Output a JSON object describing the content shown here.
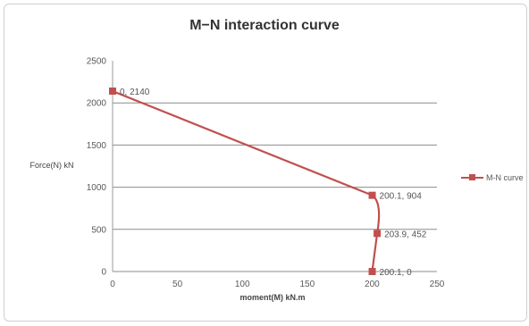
{
  "chart_data": {
    "type": "line",
    "title": "M−N interaction curve",
    "xlabel": "moment(M) kN.m",
    "ylabel": "Force(N) kN",
    "xlim": [
      0,
      250
    ],
    "ylim": [
      0,
      2500
    ],
    "x_ticks": [
      "0",
      "50",
      "100",
      "150",
      "200",
      "250"
    ],
    "y_ticks": [
      "0",
      "500",
      "1000",
      "1500",
      "2000",
      "2500"
    ],
    "grid": "horizontal",
    "legend_position": "right",
    "series": [
      {
        "name": "M-N curve",
        "color": "#c0504d",
        "marker": "square",
        "points": [
          {
            "x": 0,
            "y": 2140,
            "label": "0, 2140"
          },
          {
            "x": 200.1,
            "y": 904,
            "label": "200.1, 904"
          },
          {
            "x": 203.9,
            "y": 452,
            "label": "203.9, 452"
          },
          {
            "x": 200.1,
            "y": 0,
            "label": "200.1, 0"
          }
        ]
      }
    ]
  }
}
